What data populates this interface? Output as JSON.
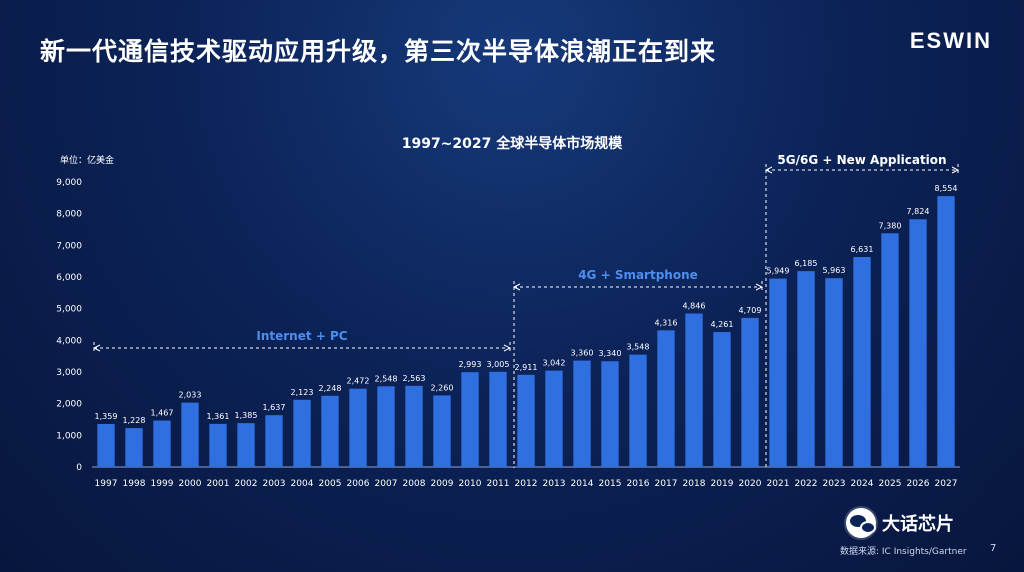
{
  "slide": {
    "title": "新一代通信技术驱动应用升级，第三次半导体浪潮正在到来",
    "brand": "ESWIN",
    "wechat_account": "大话芯片",
    "source": "数据来源: IC Insights/Gartner",
    "page_number": "7"
  },
  "colors": {
    "background": "#0c2358",
    "bar": "#2f6fe0",
    "era_label": "#4d8ef0",
    "bracket": "#ffffff"
  },
  "chart_data": {
    "type": "bar",
    "title": "1997~2027 全球半导体市场规模",
    "unit_label": "单位：亿美金",
    "xlabel": "",
    "ylabel": "",
    "ylim": [
      0,
      9000
    ],
    "yticks": [
      "0",
      "1,000",
      "2,000",
      "3,000",
      "4,000",
      "5,000",
      "6,000",
      "7,000",
      "8,000",
      "9,000"
    ],
    "grid": false,
    "categories": [
      "1997",
      "1998",
      "1999",
      "2000",
      "2001",
      "2002",
      "2003",
      "2004",
      "2005",
      "2006",
      "2007",
      "2008",
      "2009",
      "2010",
      "2011",
      "2012",
      "2013",
      "2014",
      "2015",
      "2016",
      "2017",
      "2018",
      "2019",
      "2020",
      "2021",
      "2022",
      "2023",
      "2024",
      "2025",
      "2026",
      "2027"
    ],
    "values": [
      1359,
      1228,
      1467,
      2033,
      1361,
      1385,
      1637,
      2123,
      2248,
      2472,
      2548,
      2563,
      2260,
      2993,
      3005,
      2911,
      3042,
      3360,
      3340,
      3548,
      4316,
      4846,
      4261,
      4709,
      5949,
      6185,
      5963,
      6631,
      7380,
      7824,
      8554
    ],
    "value_labels": [
      "1,359",
      "1,228",
      "1,467",
      "2,033",
      "1,361",
      "1,385",
      "1,637",
      "2,123",
      "2,248",
      "2,472",
      "2,548",
      "2,563",
      "2,260",
      "2,993",
      "3,005",
      "2,911",
      "3,042",
      "3,360",
      "3,340",
      "3,548",
      "4,316",
      "4,846",
      "4,261",
      "4,709",
      "5,949",
      "6,185",
      "5,963",
      "6,631",
      "7,380",
      "7,824",
      "8,554"
    ],
    "eras": [
      {
        "label": "Internet + PC",
        "start": "1997",
        "end": "2011"
      },
      {
        "label": "4G + Smartphone",
        "start": "2012",
        "end": "2020"
      },
      {
        "label": "5G/6G + New Application",
        "start": "2021",
        "end": "2027"
      }
    ]
  }
}
